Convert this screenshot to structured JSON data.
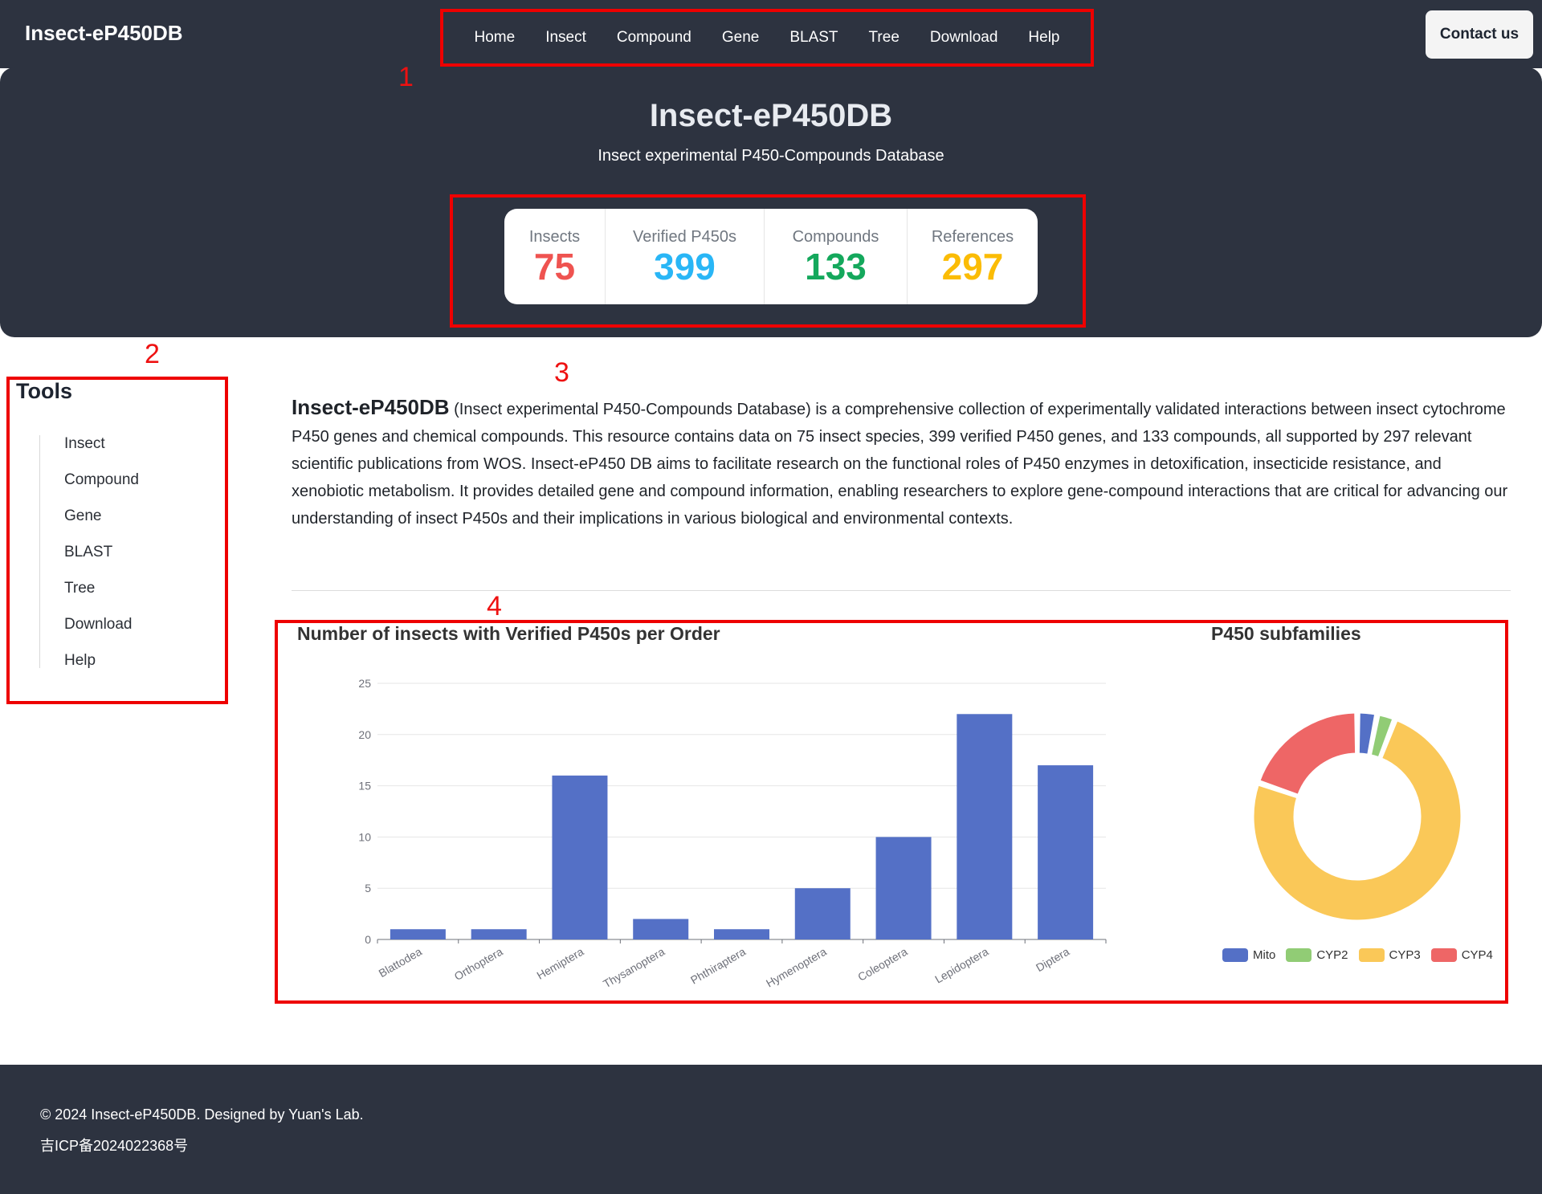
{
  "navbar": {
    "brand": "Insect-eP450DB",
    "links": [
      "Home",
      "Insect",
      "Compound",
      "Gene",
      "BLAST",
      "Tree",
      "Download",
      "Help"
    ],
    "contact": "Contact us"
  },
  "hero": {
    "title": "Insect-eP450DB",
    "subtitle": "Insect experimental P450-Compounds Database",
    "stats": [
      {
        "label": "Insects",
        "value": "75",
        "color": "#ef5350"
      },
      {
        "label": "Verified P450s",
        "value": "399",
        "color": "#29b6f6"
      },
      {
        "label": "Compounds",
        "value": "133",
        "color": "#14a85c"
      },
      {
        "label": "References",
        "value": "297",
        "color": "#fbbc05"
      }
    ]
  },
  "annotations": [
    "1",
    "2",
    "3",
    "4"
  ],
  "sidebar": {
    "title": "Tools",
    "items": [
      "Insect",
      "Compound",
      "Gene",
      "BLAST",
      "Tree",
      "Download",
      "Help"
    ]
  },
  "description": {
    "strong": "Insect-eP450DB",
    "text": " (Insect experimental P450-Compounds Database) is a comprehensive collection of experimentally validated interactions between insect cytochrome P450 genes and chemical compounds. This resource contains data on 75 insect species, 399 verified P450 genes, and 133 compounds, all supported by 297 relevant scientific publications from WOS. Insect-eP450 DB aims to facilitate research on the functional roles of P450 enzymes in detoxification, insecticide resistance, and xenobiotic metabolism. It provides detailed gene and compound information, enabling researchers to explore gene-compound interactions that are critical for advancing our understanding of insect P450s and their implications in various biological and environmental contexts."
  },
  "chart_data": [
    {
      "type": "bar",
      "title": "Number of insects with Verified P450s per Order",
      "categories": [
        "Blattodea",
        "Orthoptera",
        "Hemiptera",
        "Thysanoptera",
        "Phthiraptera",
        "Hymenoptera",
        "Coleoptera",
        "Lepidoptera",
        "Diptera"
      ],
      "values": [
        1,
        1,
        16,
        2,
        1,
        5,
        10,
        22,
        17
      ],
      "ylim": [
        0,
        25
      ],
      "yticks": [
        0,
        5,
        10,
        15,
        20,
        25
      ],
      "color": "#5470c6",
      "grid": true
    },
    {
      "type": "pie",
      "title": "P450 subfamilies",
      "labels": [
        "Mito",
        "CYP2",
        "CYP3",
        "CYP4"
      ],
      "values": [
        12,
        11,
        290,
        77
      ],
      "colors": [
        "#5470c6",
        "#91cc75",
        "#fac858",
        "#ee6666"
      ],
      "legend": "bottom"
    }
  ],
  "footer": {
    "copyright": "© 2024 Insect-eP450DB. Designed by Yuan's Lab.",
    "icp": "吉ICP备2024022368号"
  }
}
